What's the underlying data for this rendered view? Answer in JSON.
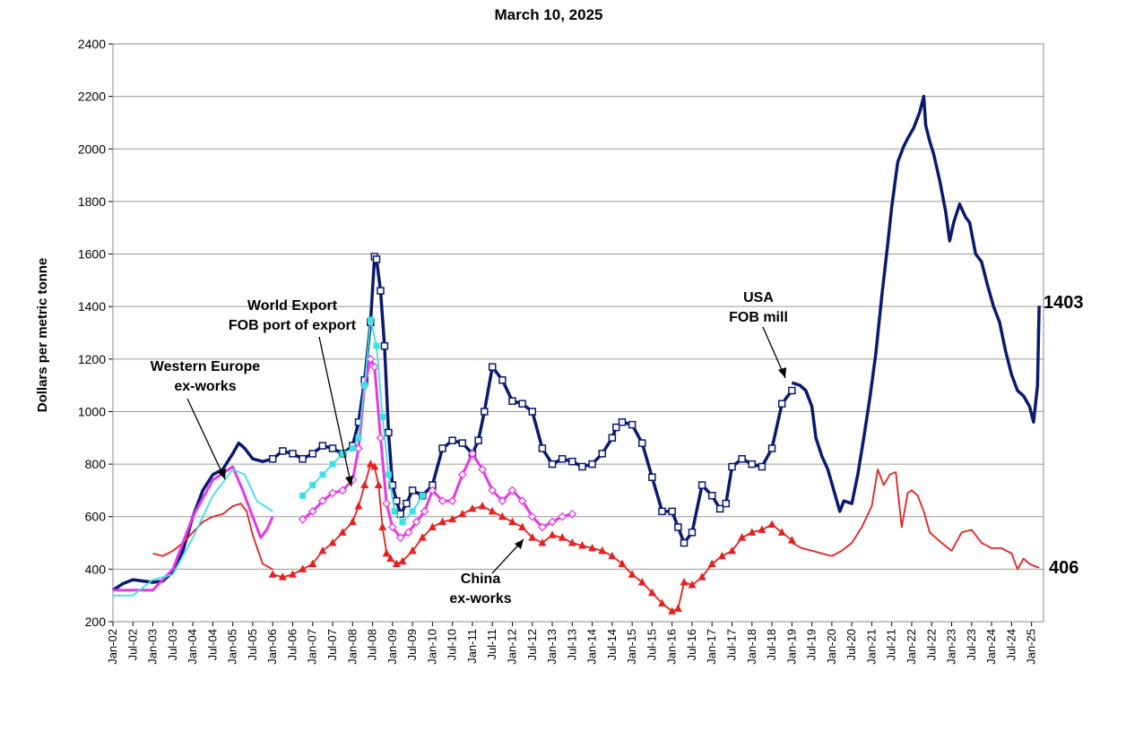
{
  "chart_data": {
    "type": "line",
    "title": "March 10, 2025",
    "ylabel": "Dollars per metric tonne",
    "xlabel": "",
    "ylim": [
      200,
      2400
    ],
    "yticks": [
      200,
      400,
      600,
      800,
      1000,
      1200,
      1400,
      1600,
      1800,
      2000,
      2200,
      2400
    ],
    "xlim": [
      2002.0,
      2025.3
    ],
    "x_tick_labels": [
      "Jan-02",
      "Jul-02",
      "Jan-03",
      "Jul-03",
      "Jan-04",
      "Jul-04",
      "Jan-05",
      "Jul-05",
      "Jan-06",
      "Jul-06",
      "Jan-07",
      "Jul-07",
      "Jan-08",
      "Jul-08",
      "Jan-09",
      "Jul-09",
      "Jan-10",
      "Jul-10",
      "Jan-11",
      "Jul-11",
      "Jan-12",
      "Jul-12",
      "Jan-13",
      "Jul-13",
      "Jan-14",
      "Jul-14",
      "Jan-15",
      "Jul-15",
      "Jan-16",
      "Jul-16",
      "Jan-17",
      "Jul-17",
      "Jan-18",
      "Jul-18",
      "Jan-19",
      "Jul-19",
      "Jan-20",
      "Jul-20",
      "Jan-21",
      "Jul-21",
      "Jan-22",
      "Jul-22",
      "Jan-23",
      "Jul-23",
      "Jan-24",
      "Jul-24",
      "Jan-25"
    ],
    "grid": "horizontal",
    "annotations": [
      {
        "text": "World Export",
        "line2": "FOB port of export"
      },
      {
        "text": "Western Europe",
        "line2": "ex-works"
      },
      {
        "text": "USA",
        "line2": "FOB mill"
      },
      {
        "text": "China",
        "line2": "ex-works"
      }
    ],
    "end_labels": [
      "1403",
      "406"
    ],
    "series": [
      {
        "color": "#0b1a6e",
        "style": "solid",
        "x": [
          2002.0,
          2002.25,
          2002.5,
          2002.75,
          2003.0,
          2003.25,
          2003.5,
          2003.75,
          2004.0,
          2004.25,
          2004.5,
          2004.75,
          2005.0,
          2005.15,
          2005.3,
          2005.5,
          2005.75,
          2006.0
        ],
        "y": [
          320,
          345,
          360,
          355,
          350,
          355,
          390,
          470,
          600,
          700,
          760,
          780,
          840,
          880,
          860,
          820,
          810,
          820
        ]
      },
      {
        "color": "#0b1a6e",
        "style": "open-square",
        "x": [
          2006.0,
          2006.25,
          2006.5,
          2006.75,
          2007.0,
          2007.25,
          2007.5,
          2007.75,
          2008.0,
          2008.15,
          2008.3,
          2008.45,
          2008.55,
          2008.6,
          2008.7,
          2008.8,
          2008.9,
          2009.0,
          2009.1,
          2009.2,
          2009.35,
          2009.5,
          2009.75,
          2010.0,
          2010.25,
          2010.5,
          2010.75,
          2011.0,
          2011.15,
          2011.3,
          2011.5,
          2011.75,
          2012.0,
          2012.25,
          2012.5,
          2012.75,
          2013.0,
          2013.25,
          2013.5,
          2013.75,
          2014.0,
          2014.25,
          2014.5,
          2014.6,
          2014.75,
          2015.0,
          2015.25,
          2015.5,
          2015.75,
          2016.0,
          2016.15,
          2016.3,
          2016.5,
          2016.75,
          2017.0,
          2017.2,
          2017.35,
          2017.5,
          2017.75,
          2018.0,
          2018.25,
          2018.5,
          2018.75,
          2019.0
        ],
        "y": [
          820,
          850,
          840,
          820,
          840,
          870,
          860,
          840,
          870,
          960,
          1120,
          1340,
          1590,
          1580,
          1460,
          1250,
          920,
          720,
          660,
          610,
          650,
          700,
          680,
          720,
          860,
          890,
          880,
          840,
          890,
          1000,
          1170,
          1120,
          1040,
          1030,
          1000,
          860,
          800,
          820,
          810,
          790,
          800,
          840,
          900,
          940,
          960,
          950,
          880,
          750,
          620,
          620,
          560,
          500,
          540,
          720,
          680,
          630,
          650,
          790,
          820,
          800,
          790,
          860,
          1030,
          1080
        ]
      },
      {
        "color": "#0b1a6e",
        "style": "solid",
        "x": [
          2019.0,
          2019.2,
          2019.35,
          2019.5,
          2019.6,
          2019.75,
          2019.9,
          2020.05,
          2020.2,
          2020.3,
          2020.5,
          2020.65,
          2020.8,
          2020.95,
          2021.1,
          2021.25,
          2021.4,
          2021.5,
          2021.65,
          2021.8,
          2021.9,
          2022.05,
          2022.2,
          2022.3,
          2022.35,
          2022.45,
          2022.55,
          2022.7,
          2022.85,
          2022.95,
          2023.05,
          2023.2,
          2023.35,
          2023.45,
          2023.6,
          2023.75,
          2023.9,
          2024.05,
          2024.2,
          2024.35,
          2024.5,
          2024.65,
          2024.8,
          2024.95,
          2025.05,
          2025.15,
          2025.19
        ],
        "y": [
          1110,
          1100,
          1080,
          1020,
          900,
          830,
          780,
          700,
          620,
          660,
          650,
          760,
          900,
          1050,
          1220,
          1440,
          1640,
          1780,
          1950,
          2010,
          2040,
          2080,
          2140,
          2200,
          2090,
          2030,
          1980,
          1880,
          1760,
          1650,
          1720,
          1790,
          1740,
          1720,
          1600,
          1570,
          1480,
          1400,
          1340,
          1230,
          1140,
          1080,
          1060,
          1020,
          960,
          1100,
          1403
        ]
      },
      {
        "color": "#e62020",
        "style": "solid",
        "x": [
          2003.0,
          2003.25,
          2003.5,
          2003.75,
          2004.0,
          2004.25,
          2004.5,
          2004.75,
          2005.0,
          2005.2,
          2005.35,
          2005.5,
          2005.75,
          2006.0
        ],
        "y": [
          460,
          450,
          470,
          500,
          540,
          580,
          600,
          610,
          640,
          650,
          620,
          530,
          420,
          400
        ]
      },
      {
        "color": "#e62020",
        "style": "filled-triangle",
        "x": [
          2006.0,
          2006.25,
          2006.5,
          2006.75,
          2007.0,
          2007.25,
          2007.5,
          2007.75,
          2008.0,
          2008.15,
          2008.3,
          2008.45,
          2008.55,
          2008.65,
          2008.75,
          2008.85,
          2008.95,
          2009.1,
          2009.25,
          2009.5,
          2009.75,
          2010.0,
          2010.25,
          2010.5,
          2010.75,
          2011.0,
          2011.25,
          2011.5,
          2011.75,
          2012.0,
          2012.25,
          2012.5,
          2012.75,
          2013.0,
          2013.25,
          2013.5,
          2013.75,
          2014.0,
          2014.25,
          2014.5,
          2014.75,
          2015.0,
          2015.25,
          2015.5,
          2015.75,
          2016.0,
          2016.15,
          2016.3,
          2016.5,
          2016.75,
          2017.0,
          2017.25,
          2017.5,
          2017.75,
          2018.0,
          2018.25,
          2018.5,
          2018.75,
          2019.0
        ],
        "y": [
          380,
          370,
          380,
          400,
          420,
          470,
          500,
          540,
          580,
          640,
          720,
          800,
          790,
          720,
          560,
          460,
          440,
          420,
          430,
          470,
          520,
          560,
          580,
          590,
          610,
          630,
          640,
          620,
          600,
          580,
          560,
          520,
          500,
          530,
          520,
          500,
          490,
          480,
          470,
          450,
          420,
          380,
          350,
          310,
          270,
          240,
          250,
          350,
          340,
          370,
          420,
          450,
          470,
          520,
          540,
          550,
          570,
          540,
          510
        ]
      },
      {
        "color": "#e62020",
        "style": "solid",
        "x": [
          2019.0,
          2019.25,
          2019.5,
          2019.75,
          2020.0,
          2020.25,
          2020.5,
          2020.75,
          2021.0,
          2021.15,
          2021.3,
          2021.45,
          2021.6,
          2021.75,
          2021.9,
          2022.0,
          2022.15,
          2022.3,
          2022.45,
          2022.6,
          2022.75,
          2023.0,
          2023.25,
          2023.5,
          2023.75,
          2024.0,
          2024.25,
          2024.5,
          2024.65,
          2024.8,
          2024.95,
          2025.1,
          2025.19
        ],
        "y": [
          500,
          480,
          470,
          460,
          450,
          470,
          500,
          560,
          640,
          780,
          720,
          760,
          770,
          560,
          690,
          700,
          680,
          620,
          540,
          520,
          500,
          470,
          540,
          550,
          500,
          480,
          480,
          460,
          400,
          440,
          420,
          410,
          406
        ]
      },
      {
        "color": "#e639e6",
        "style": "solid",
        "x": [
          2002.0,
          2002.5,
          2003.0,
          2003.5,
          2004.0,
          2004.5,
          2005.0,
          2005.25,
          2005.5,
          2005.7,
          2005.85,
          2006.0
        ],
        "y": [
          320,
          320,
          320,
          400,
          600,
          740,
          790,
          700,
          600,
          520,
          550,
          600
        ]
      },
      {
        "color": "#e639e6",
        "style": "open-diamond",
        "x": [
          2006.75,
          2007.0,
          2007.25,
          2007.5,
          2007.75,
          2008.0,
          2008.15,
          2008.3,
          2008.45,
          2008.55,
          2008.7,
          2008.85,
          2009.0,
          2009.2,
          2009.4,
          2009.6,
          2009.8,
          2010.0,
          2010.25,
          2010.5,
          2010.75,
          2011.0,
          2011.25,
          2011.5,
          2011.75,
          2012.0,
          2012.25,
          2012.5,
          2012.75,
          2013.0,
          2013.25,
          2013.5
        ],
        "y": [
          590,
          620,
          660,
          690,
          700,
          740,
          860,
          1100,
          1200,
          1170,
          900,
          650,
          560,
          520,
          540,
          580,
          620,
          700,
          660,
          660,
          760,
          840,
          780,
          700,
          660,
          700,
          660,
          600,
          560,
          580,
          600,
          610
        ]
      },
      {
        "color": "#3de0e0",
        "style": "solid",
        "x": [
          2002.0,
          2002.5,
          2003.0,
          2003.5,
          2004.0,
          2004.5,
          2005.0,
          2005.3,
          2005.6,
          2005.8,
          2006.0
        ],
        "y": [
          300,
          300,
          360,
          380,
          520,
          680,
          780,
          760,
          660,
          640,
          620
        ]
      },
      {
        "color": "#3de0e0",
        "style": "filled-square",
        "x": [
          2006.75,
          2007.0,
          2007.25,
          2007.5,
          2007.75,
          2008.0,
          2008.15,
          2008.3,
          2008.45,
          2008.6,
          2008.75,
          2008.9,
          2009.05,
          2009.25,
          2009.5,
          2009.75
        ],
        "y": [
          680,
          720,
          760,
          800,
          840,
          860,
          900,
          1100,
          1350,
          1250,
          980,
          760,
          620,
          580,
          620,
          680
        ]
      }
    ]
  }
}
